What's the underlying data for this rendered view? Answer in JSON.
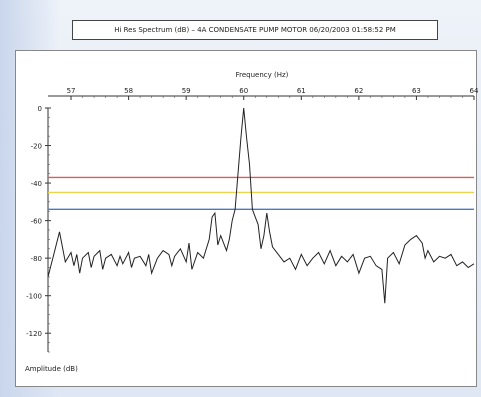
{
  "header": {
    "title": "Hi Res Spectrum (dB) – 4A CONDENSATE PUMP MOTOR 06/20/2003 01:58:52 PM"
  },
  "chart_data": {
    "type": "line",
    "title": "Hi Res Spectrum (dB) – 4A CONDENSATE PUMP MOTOR 06/20/2003 01:58:52 PM",
    "xlabel": "Frequency (Hz)",
    "ylabel": "Amplitude (dB)",
    "xlim": [
      56.6,
      64
    ],
    "ylim": [
      -130,
      0
    ],
    "x_ticks": [
      "57",
      "58",
      "59",
      "60",
      "61",
      "62",
      "63",
      "64"
    ],
    "y_ticks": [
      "0",
      "-20",
      "-40",
      "-60",
      "-80",
      "-100",
      "-120"
    ],
    "x_axis_position": "top",
    "grid": false,
    "thresholds": [
      {
        "value": -37,
        "color": "#e05a5a"
      },
      {
        "value": -45,
        "color": "#e8d44d"
      },
      {
        "value": -54,
        "color": "#4a78c8"
      }
    ],
    "series": [
      {
        "color": "#222222",
        "x": [
          56.6,
          56.7,
          56.8,
          56.85,
          56.9,
          57.0,
          57.05,
          57.1,
          57.15,
          57.2,
          57.3,
          57.35,
          57.4,
          57.5,
          57.55,
          57.6,
          57.7,
          57.8,
          57.85,
          57.9,
          58.0,
          58.05,
          58.1,
          58.2,
          58.3,
          58.35,
          58.4,
          58.5,
          58.6,
          58.7,
          58.75,
          58.8,
          58.9,
          59.0,
          59.05,
          59.1,
          59.2,
          59.3,
          59.4,
          59.45,
          59.5,
          59.55,
          59.6,
          59.7,
          59.75,
          59.8,
          59.85,
          59.9,
          59.95,
          60.0,
          60.05,
          60.1,
          60.15,
          60.2,
          60.25,
          60.3,
          60.35,
          60.4,
          60.45,
          60.5,
          60.6,
          60.7,
          60.8,
          60.9,
          61.0,
          61.1,
          61.2,
          61.3,
          61.4,
          61.5,
          61.6,
          61.7,
          61.8,
          61.9,
          62.0,
          62.1,
          62.2,
          62.3,
          62.4,
          62.45,
          62.5,
          62.6,
          62.7,
          62.8,
          62.9,
          63.0,
          63.1,
          63.15,
          63.2,
          63.3,
          63.4,
          63.5,
          63.6,
          63.7,
          63.8,
          63.9,
          64.0
        ],
        "y": [
          -90,
          -78,
          -66,
          -74,
          -82,
          -77,
          -84,
          -78,
          -88,
          -80,
          -77,
          -85,
          -79,
          -76,
          -86,
          -80,
          -78,
          -84,
          -79,
          -83,
          -77,
          -85,
          -80,
          -79,
          -84,
          -78,
          -88,
          -80,
          -76,
          -78,
          -84,
          -79,
          -75,
          -82,
          -72,
          -86,
          -77,
          -80,
          -70,
          -58,
          -56,
          -73,
          -68,
          -76,
          -70,
          -60,
          -54,
          -35,
          -16,
          0,
          -16,
          -30,
          -54,
          -58,
          -62,
          -75,
          -68,
          -56,
          -66,
          -74,
          -78,
          -82,
          -80,
          -86,
          -78,
          -84,
          -80,
          -77,
          -83,
          -76,
          -84,
          -79,
          -82,
          -78,
          -88,
          -80,
          -79,
          -84,
          -86,
          -104,
          -80,
          -77,
          -83,
          -73,
          -70,
          -68,
          -72,
          -80,
          -76,
          -82,
          -79,
          -80,
          -78,
          -84,
          -82,
          -85,
          -83
        ]
      }
    ]
  }
}
